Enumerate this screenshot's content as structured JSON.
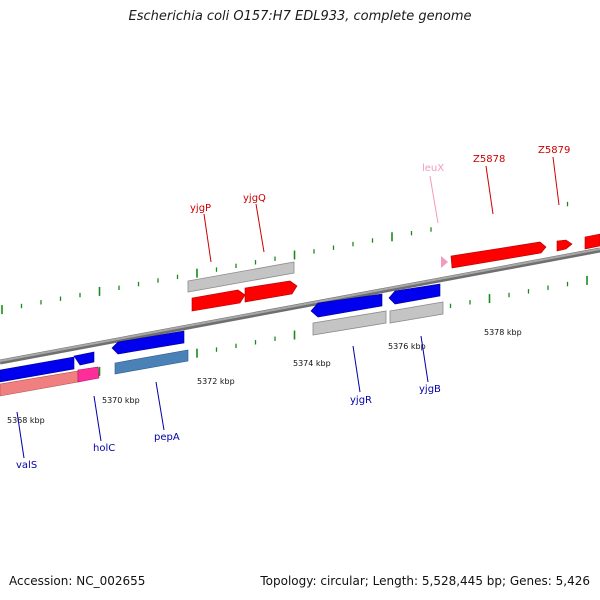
{
  "header": {
    "title": "Escherichia coli O157:H7 EDL933, complete genome"
  },
  "footer": {
    "accession": "Accession: NC_002655",
    "summary": "Topology: circular; Length: 5,528,445 bp; Genes: 5,426"
  },
  "colors": {
    "backbone": "#8a8a8a",
    "tick": "#1a8a1a",
    "forward_label": "#cc0000",
    "reverse_label": "#0000aa",
    "trna_label": "#f29ac0",
    "cds_forward": "#ff0000",
    "cds_reverse": "#0000ee",
    "gene_grey": "#c4c4c4",
    "rna_pink": "#ff2d9a",
    "salmon": "#f08080",
    "steel": "#4a82b8"
  },
  "scale": {
    "ticks": [
      "5368 kbp",
      "5370 kbp",
      "5372 kbp",
      "5374 kbp",
      "5376 kbp",
      "5378 kbp"
    ]
  },
  "genes": {
    "forward": [
      "yjgP",
      "yjgQ",
      "leuX",
      "Z5878",
      "Z5879"
    ],
    "reverse": [
      "valS",
      "holC",
      "pepA",
      "yjgR",
      "yjgB"
    ]
  }
}
